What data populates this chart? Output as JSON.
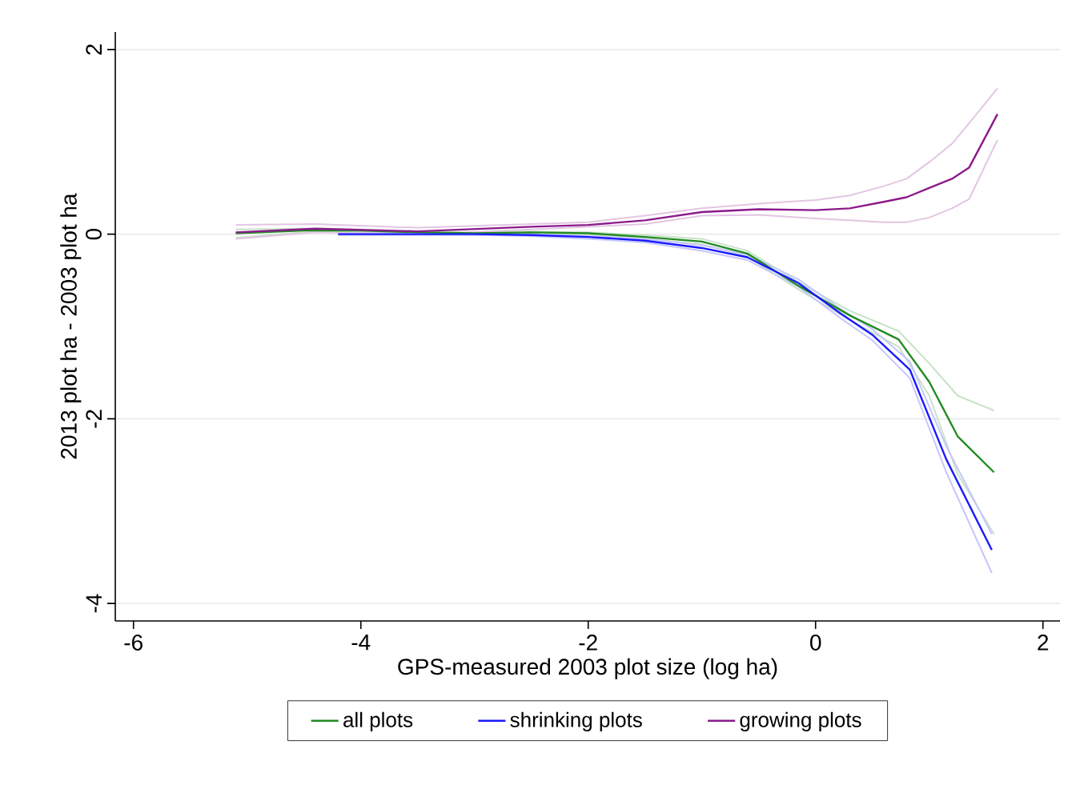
{
  "chart_data": {
    "type": "line",
    "xlabel": "GPS-measured 2003 plot size (log ha)",
    "ylabel": "2013 plot ha - 2003 plot ha",
    "xlim": [
      -6.16,
      2.15
    ],
    "ylim": [
      -4.19,
      2.19
    ],
    "xticks": [
      -6,
      -4,
      -2,
      0,
      2
    ],
    "yticks": [
      -4,
      -2,
      0,
      2
    ],
    "grid": "y",
    "legend": "bottom",
    "line_style": "solid",
    "marker": "none",
    "series": [
      {
        "color": "#c8e2c8",
        "x": [
          -5.1,
          -4.5,
          -4,
          -3.5,
          -3,
          -2.5,
          -2,
          -1.5,
          -1,
          -0.6,
          -0.15,
          0.3,
          0.73,
          1.0,
          1.25,
          1.57
        ],
        "values": [
          0.05,
          0.06,
          0.05,
          0.03,
          0.02,
          0.03,
          0.02,
          -0.01,
          -0.05,
          -0.18,
          -0.52,
          -0.83,
          -1.05,
          -1.4,
          -1.75,
          -1.91
        ]
      },
      {
        "color": "#c8e2c8",
        "x": [
          -5.1,
          -4.5,
          -4,
          -3.5,
          -3,
          -2.5,
          -2,
          -1.5,
          -1,
          -0.6,
          -0.15,
          0.3,
          0.73,
          1.0,
          1.25,
          1.57
        ],
        "values": [
          -0.04,
          0.02,
          0.03,
          0.01,
          0.0,
          0.01,
          0.0,
          -0.05,
          -0.11,
          -0.24,
          -0.6,
          -0.93,
          -1.22,
          -1.75,
          -2.6,
          -3.25
        ]
      },
      {
        "color": "#c6c6ff",
        "x": [
          -4.2,
          -3.5,
          -3,
          -2.5,
          -2,
          -1.5,
          -1,
          -0.6,
          -0.15,
          0.22,
          0.5,
          0.83,
          1.15,
          1.55
        ],
        "values": [
          0.01,
          0.01,
          0.01,
          0,
          -0.02,
          -0.05,
          -0.12,
          -0.22,
          -0.49,
          -0.81,
          -1.03,
          -1.38,
          -2.3,
          -3.25
        ]
      },
      {
        "color": "#c6c6ff",
        "x": [
          -4.2,
          -3.5,
          -3,
          -2.5,
          -2,
          -1.5,
          -1,
          -0.6,
          -0.15,
          0.22,
          0.5,
          0.83,
          1.15,
          1.55
        ],
        "values": [
          -0.01,
          -0.01,
          -0.01,
          -0.02,
          -0.05,
          -0.09,
          -0.18,
          -0.28,
          -0.57,
          -0.91,
          -1.15,
          -1.56,
          -2.58,
          -3.67
        ]
      },
      {
        "color": "#e2c6e2",
        "x": [
          -5.1,
          -4.4,
          -3.5,
          -2.5,
          -2,
          -1.5,
          -1,
          -0.5,
          0,
          0.3,
          0.6,
          0.8,
          1.0,
          1.2,
          1.35,
          1.6
        ],
        "values": [
          0.1,
          0.11,
          0.07,
          0.11,
          0.13,
          0.2,
          0.28,
          0.33,
          0.37,
          0.42,
          0.52,
          0.6,
          0.78,
          0.98,
          1.2,
          1.58
        ]
      },
      {
        "color": "#e2c6e2",
        "x": [
          -5.1,
          -4.4,
          -3.5,
          -2.5,
          -2,
          -1.5,
          -1,
          -0.5,
          0,
          0.3,
          0.6,
          0.8,
          1.0,
          1.2,
          1.35,
          1.6
        ],
        "values": [
          -0.05,
          0.02,
          0.0,
          0.05,
          0.08,
          0.11,
          0.2,
          0.21,
          0.17,
          0.15,
          0.13,
          0.13,
          0.18,
          0.28,
          0.38,
          1.02
        ]
      },
      {
        "name": "all plots",
        "color": "#228b22",
        "x": [
          -5.1,
          -4.5,
          -4,
          -3.5,
          -3,
          -2.5,
          -2,
          -1.5,
          -1,
          -0.6,
          -0.15,
          0.3,
          0.73,
          1.0,
          1.25,
          1.57
        ],
        "values": [
          0.01,
          0.04,
          0.04,
          0.02,
          0.01,
          0.02,
          0.01,
          -0.03,
          -0.08,
          -0.21,
          -0.56,
          -0.88,
          -1.14,
          -1.6,
          -2.19,
          -2.58
        ]
      },
      {
        "name": "shrinking plots",
        "color": "#1a1aff",
        "x": [
          -4.2,
          -3.5,
          -3,
          -2.5,
          -2,
          -1.5,
          -1,
          -0.6,
          -0.15,
          0.22,
          0.5,
          0.83,
          1.15,
          1.55
        ],
        "values": [
          0,
          0,
          0,
          -0.01,
          -0.03,
          -0.07,
          -0.15,
          -0.25,
          -0.53,
          -0.86,
          -1.09,
          -1.47,
          -2.44,
          -3.42
        ]
      },
      {
        "name": "growing plots",
        "color": "#8b1a8b",
        "x": [
          -5.1,
          -4.4,
          -3.5,
          -2.5,
          -2,
          -1.5,
          -1,
          -0.5,
          0,
          0.3,
          0.6,
          0.8,
          1.0,
          1.2,
          1.35,
          1.6
        ],
        "values": [
          0.02,
          0.06,
          0.03,
          0.08,
          0.1,
          0.15,
          0.24,
          0.27,
          0.26,
          0.28,
          0.35,
          0.4,
          0.5,
          0.6,
          0.72,
          1.3
        ]
      }
    ]
  }
}
